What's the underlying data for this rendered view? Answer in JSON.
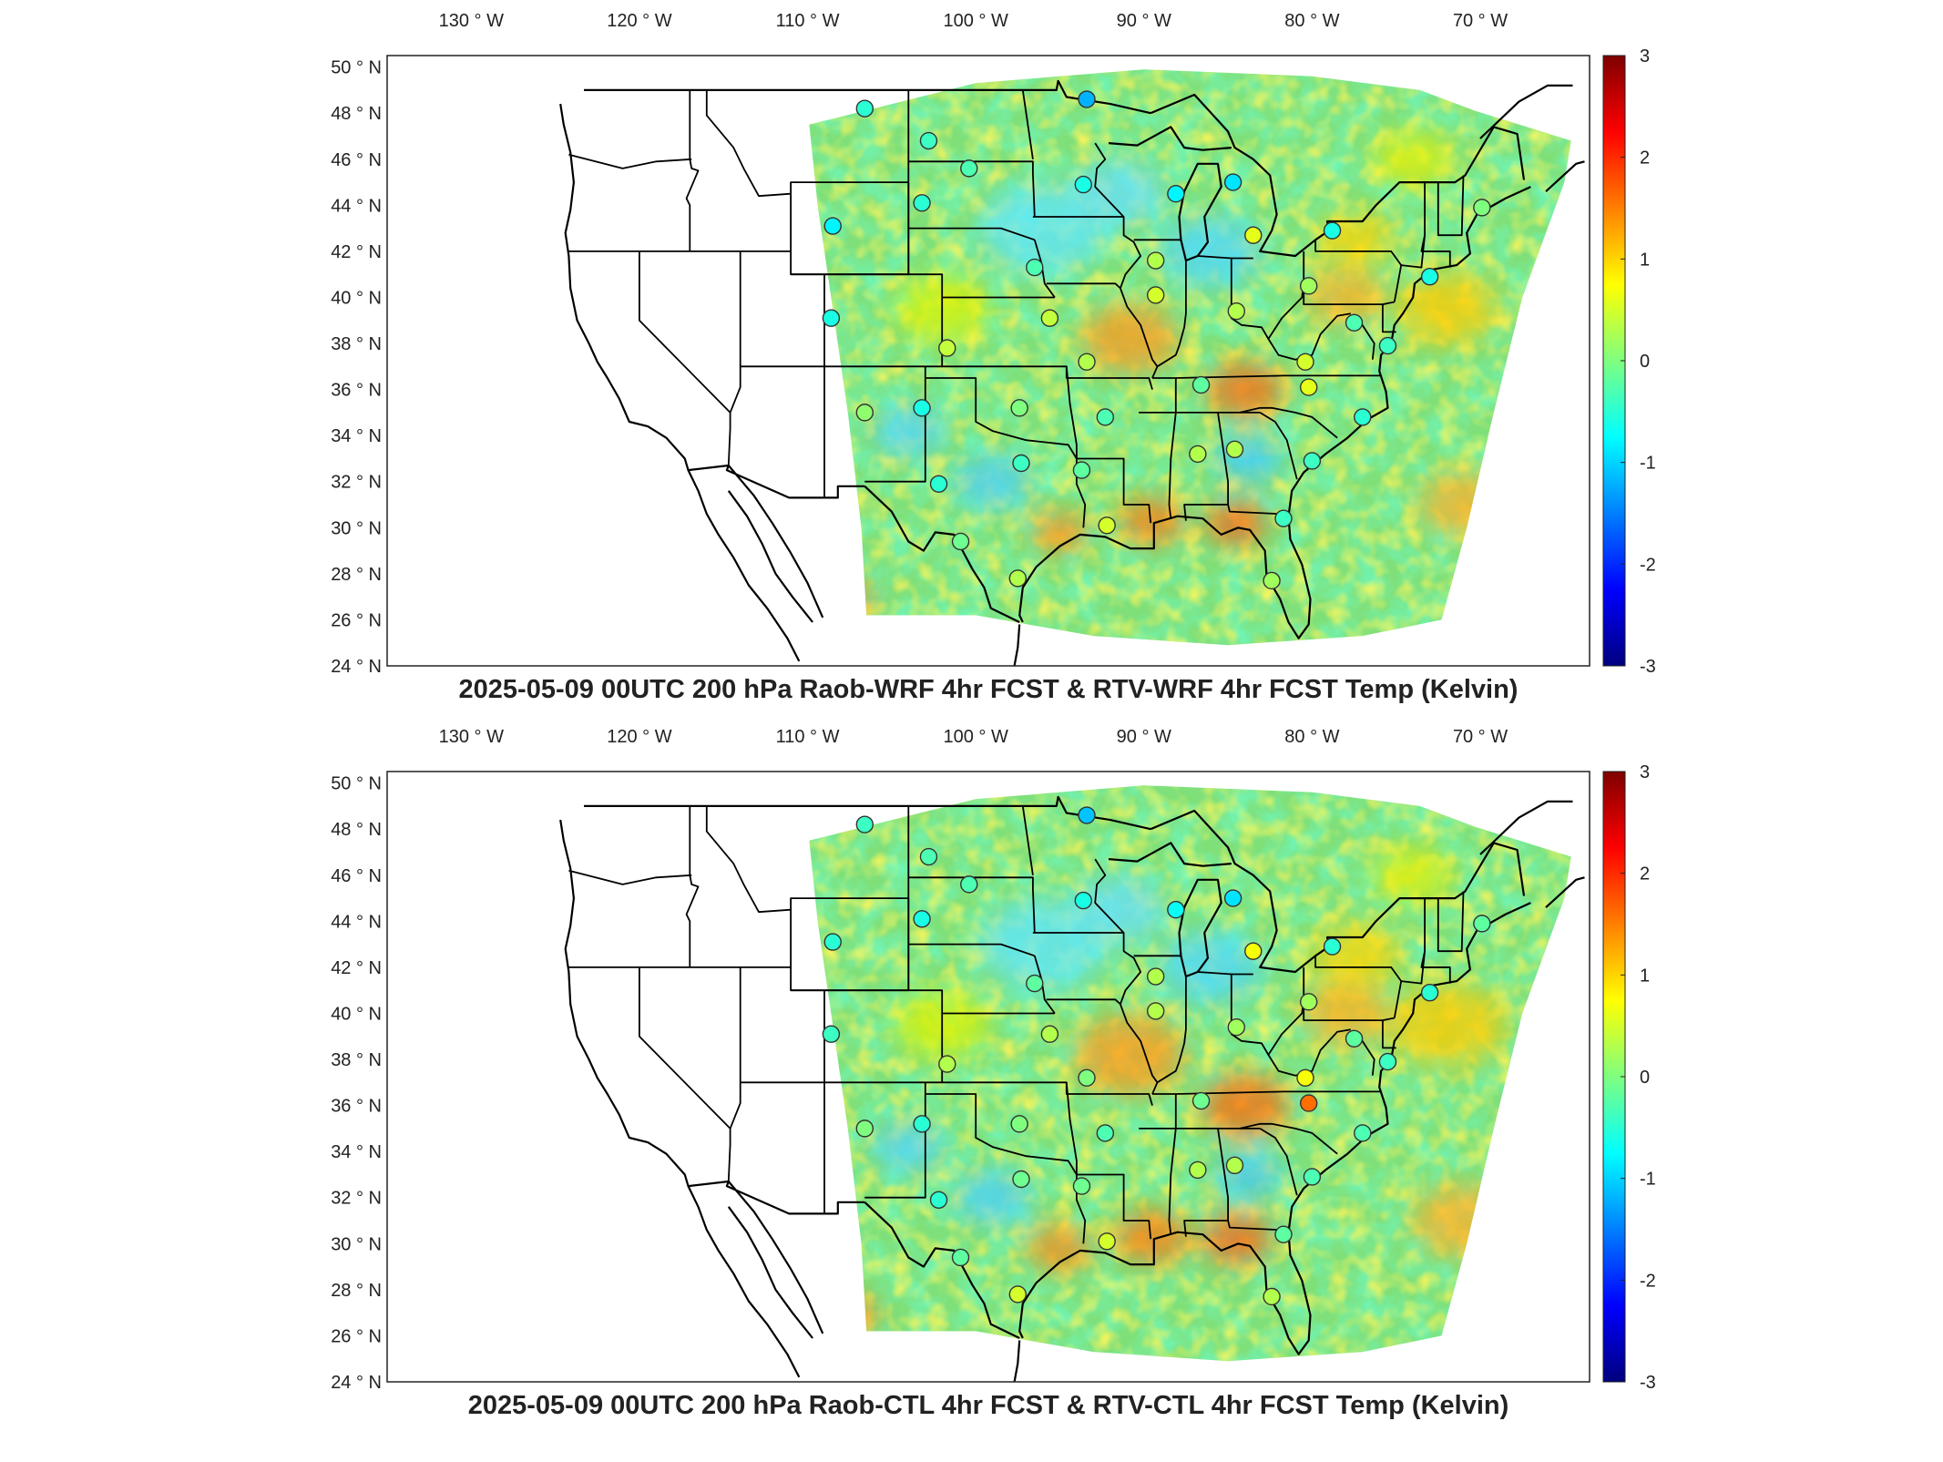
{
  "colors": {
    "colormap": [
      "#00007f",
      "#0000ff",
      "#007fff",
      "#00ffff",
      "#7fff7f",
      "#ffff00",
      "#ff7f00",
      "#ff0000",
      "#7f0000"
    ],
    "field_green": "#7fe07a",
    "outline": "#000000",
    "frame": "#222222"
  },
  "axes": {
    "lon_labels": [
      "130 ° W",
      "120 ° W",
      "110 ° W",
      "100 ° W",
      "90 ° W",
      "80 ° W",
      "70 ° W"
    ],
    "lon_values": [
      -130,
      -120,
      -110,
      -100,
      -90,
      -80,
      -70
    ],
    "lat_labels": [
      "50 ° N",
      "48 ° N",
      "46 ° N",
      "44 ° N",
      "42 ° N",
      "40 ° N",
      "38 ° N",
      "36 ° N",
      "34 ° N",
      "32 ° N",
      "30 ° N",
      "28 ° N",
      "26 ° N",
      "24 ° N"
    ],
    "lat_values": [
      50,
      48,
      46,
      44,
      42,
      40,
      38,
      36,
      34,
      32,
      30,
      28,
      26,
      24
    ]
  },
  "colorbar": {
    "ticks": [
      "3",
      "2",
      "1",
      "0",
      "-1",
      "-2",
      "-3"
    ],
    "values": [
      3,
      2,
      1,
      0,
      -1,
      -2,
      -3
    ],
    "min": -3,
    "max": 3
  },
  "panels": [
    {
      "title": "2025-05-09 00UTC 200 hPa Raob-WRF 4hr FCST & RTV-WRF 4hr FCST Temp (Kelvin)",
      "stations": [
        {
          "lon": -106.6,
          "lat": 48.2,
          "v": -0.5
        },
        {
          "lon": -93.4,
          "lat": 48.6,
          "v": -1.2
        },
        {
          "lon": -102.8,
          "lat": 46.8,
          "v": -0.4
        },
        {
          "lon": -100.4,
          "lat": 45.6,
          "v": -0.3
        },
        {
          "lon": -93.6,
          "lat": 44.9,
          "v": -0.6
        },
        {
          "lon": -88.1,
          "lat": 44.5,
          "v": -0.8
        },
        {
          "lon": -84.7,
          "lat": 45.0,
          "v": -0.9
        },
        {
          "lon": -103.2,
          "lat": 44.1,
          "v": -0.5
        },
        {
          "lon": -108.5,
          "lat": 43.1,
          "v": -0.8
        },
        {
          "lon": -83.5,
          "lat": 42.7,
          "v": 0.6
        },
        {
          "lon": -78.8,
          "lat": 42.9,
          "v": -0.6
        },
        {
          "lon": -69.9,
          "lat": 43.9,
          "v": 0.0
        },
        {
          "lon": -96.5,
          "lat": 41.3,
          "v": -0.3
        },
        {
          "lon": -89.3,
          "lat": 41.6,
          "v": 0.3
        },
        {
          "lon": -73.0,
          "lat": 40.9,
          "v": -0.6
        },
        {
          "lon": -80.2,
          "lat": 40.5,
          "v": 0.2
        },
        {
          "lon": -89.3,
          "lat": 40.1,
          "v": 0.5
        },
        {
          "lon": -84.5,
          "lat": 39.4,
          "v": 0.3
        },
        {
          "lon": -108.6,
          "lat": 39.1,
          "v": -0.6
        },
        {
          "lon": -95.6,
          "lat": 39.1,
          "v": 0.4
        },
        {
          "lon": -77.5,
          "lat": 38.9,
          "v": -0.3
        },
        {
          "lon": -101.7,
          "lat": 37.8,
          "v": 0.4
        },
        {
          "lon": -75.5,
          "lat": 37.9,
          "v": -0.4
        },
        {
          "lon": -93.4,
          "lat": 37.2,
          "v": 0.3
        },
        {
          "lon": -80.4,
          "lat": 37.2,
          "v": 0.5
        },
        {
          "lon": -86.6,
          "lat": 36.2,
          "v": -0.2
        },
        {
          "lon": -80.2,
          "lat": 36.1,
          "v": 0.6
        },
        {
          "lon": -106.6,
          "lat": 35.0,
          "v": 0.1
        },
        {
          "lon": -103.2,
          "lat": 35.2,
          "v": -0.6
        },
        {
          "lon": -97.4,
          "lat": 35.2,
          "v": 0.0
        },
        {
          "lon": -92.3,
          "lat": 34.8,
          "v": -0.3
        },
        {
          "lon": -77.0,
          "lat": 34.8,
          "v": -0.5
        },
        {
          "lon": -97.3,
          "lat": 32.8,
          "v": -0.4
        },
        {
          "lon": -84.6,
          "lat": 33.4,
          "v": 0.3
        },
        {
          "lon": -86.8,
          "lat": 33.2,
          "v": 0.3
        },
        {
          "lon": -80.0,
          "lat": 32.9,
          "v": -0.4
        },
        {
          "lon": -102.2,
          "lat": 31.9,
          "v": -0.5
        },
        {
          "lon": -93.7,
          "lat": 32.5,
          "v": -0.2
        },
        {
          "lon": -92.2,
          "lat": 30.1,
          "v": 0.5
        },
        {
          "lon": -81.7,
          "lat": 30.4,
          "v": -0.4
        },
        {
          "lon": -100.9,
          "lat": 29.4,
          "v": -0.1
        },
        {
          "lon": -97.5,
          "lat": 27.8,
          "v": 0.3
        },
        {
          "lon": -82.4,
          "lat": 27.7,
          "v": 0.2
        }
      ]
    },
    {
      "title": "2025-05-09 00UTC 200 hPa Raob-CTL 4hr FCST & RTV-CTL 4hr FCST Temp (Kelvin)",
      "stations": [
        {
          "lon": -106.6,
          "lat": 48.2,
          "v": -0.4
        },
        {
          "lon": -93.4,
          "lat": 48.6,
          "v": -1.1
        },
        {
          "lon": -102.8,
          "lat": 46.8,
          "v": -0.3
        },
        {
          "lon": -100.4,
          "lat": 45.6,
          "v": -0.3
        },
        {
          "lon": -93.6,
          "lat": 44.9,
          "v": -0.6
        },
        {
          "lon": -88.1,
          "lat": 44.5,
          "v": -0.7
        },
        {
          "lon": -84.7,
          "lat": 45.0,
          "v": -0.9
        },
        {
          "lon": -103.2,
          "lat": 44.1,
          "v": -0.6
        },
        {
          "lon": -108.5,
          "lat": 43.1,
          "v": -0.5
        },
        {
          "lon": -83.5,
          "lat": 42.7,
          "v": 0.7
        },
        {
          "lon": -78.8,
          "lat": 42.9,
          "v": -0.5
        },
        {
          "lon": -69.9,
          "lat": 43.9,
          "v": -0.2
        },
        {
          "lon": -96.5,
          "lat": 41.3,
          "v": -0.2
        },
        {
          "lon": -89.3,
          "lat": 41.6,
          "v": 0.3
        },
        {
          "lon": -73.0,
          "lat": 40.9,
          "v": -0.5
        },
        {
          "lon": -80.2,
          "lat": 40.5,
          "v": 0.2
        },
        {
          "lon": -89.3,
          "lat": 40.1,
          "v": 0.3
        },
        {
          "lon": -84.5,
          "lat": 39.4,
          "v": 0.2
        },
        {
          "lon": -108.6,
          "lat": 39.1,
          "v": -0.4
        },
        {
          "lon": -95.6,
          "lat": 39.1,
          "v": 0.3
        },
        {
          "lon": -77.5,
          "lat": 38.9,
          "v": -0.2
        },
        {
          "lon": -101.7,
          "lat": 37.8,
          "v": 0.3
        },
        {
          "lon": -75.5,
          "lat": 37.9,
          "v": -0.4
        },
        {
          "lon": -93.4,
          "lat": 37.2,
          "v": 0.0
        },
        {
          "lon": -80.4,
          "lat": 37.2,
          "v": 0.7
        },
        {
          "lon": -86.6,
          "lat": 36.2,
          "v": -0.1
        },
        {
          "lon": -80.2,
          "lat": 36.1,
          "v": 1.6
        },
        {
          "lon": -106.6,
          "lat": 35.0,
          "v": 0.0
        },
        {
          "lon": -103.2,
          "lat": 35.2,
          "v": -0.5
        },
        {
          "lon": -97.4,
          "lat": 35.2,
          "v": 0.0
        },
        {
          "lon": -92.3,
          "lat": 34.8,
          "v": -0.3
        },
        {
          "lon": -77.0,
          "lat": 34.8,
          "v": -0.3
        },
        {
          "lon": -97.3,
          "lat": 32.8,
          "v": -0.1
        },
        {
          "lon": -84.6,
          "lat": 33.4,
          "v": 0.3
        },
        {
          "lon": -86.8,
          "lat": 33.2,
          "v": 0.3
        },
        {
          "lon": -80.0,
          "lat": 32.9,
          "v": -0.3
        },
        {
          "lon": -102.2,
          "lat": 31.9,
          "v": -0.5
        },
        {
          "lon": -93.7,
          "lat": 32.5,
          "v": -0.1
        },
        {
          "lon": -92.2,
          "lat": 30.1,
          "v": 0.5
        },
        {
          "lon": -81.7,
          "lat": 30.4,
          "v": -0.2
        },
        {
          "lon": -100.9,
          "lat": 29.4,
          "v": -0.2
        },
        {
          "lon": -97.5,
          "lat": 27.8,
          "v": 0.5
        },
        {
          "lon": -82.4,
          "lat": 27.7,
          "v": 0.3
        }
      ]
    }
  ]
}
